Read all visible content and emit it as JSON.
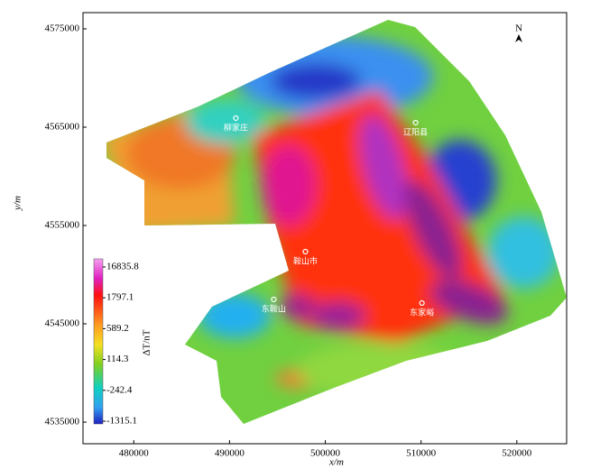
{
  "map": {
    "xlabel": "x/m",
    "ylabel": "y/m",
    "xlim": [
      474700,
      525200
    ],
    "ylim": [
      4532800,
      4576650
    ],
    "xticks": [
      480000,
      490000,
      500000,
      510000,
      520000
    ],
    "yticks": [
      4535000,
      4545000,
      4555000,
      4565000,
      4575000
    ],
    "north": "N",
    "colorbar": {
      "label": "ΔT/nT",
      "ticks": [
        16835.8,
        1797.1,
        589.2,
        114.3,
        -242.4,
        -1315.1
      ]
    },
    "places": [
      {
        "label": "柳家庄",
        "x": 490660,
        "y": 4565920
      },
      {
        "label": "辽阳县",
        "x": 509430,
        "y": 4565460
      },
      {
        "label": "鞍山市",
        "x": 497920,
        "y": 4552340
      },
      {
        "label": "东鞍山",
        "x": 494620,
        "y": 4547480
      },
      {
        "label": "东家峪",
        "x": 510090,
        "y": 4547110
      }
    ]
  }
}
